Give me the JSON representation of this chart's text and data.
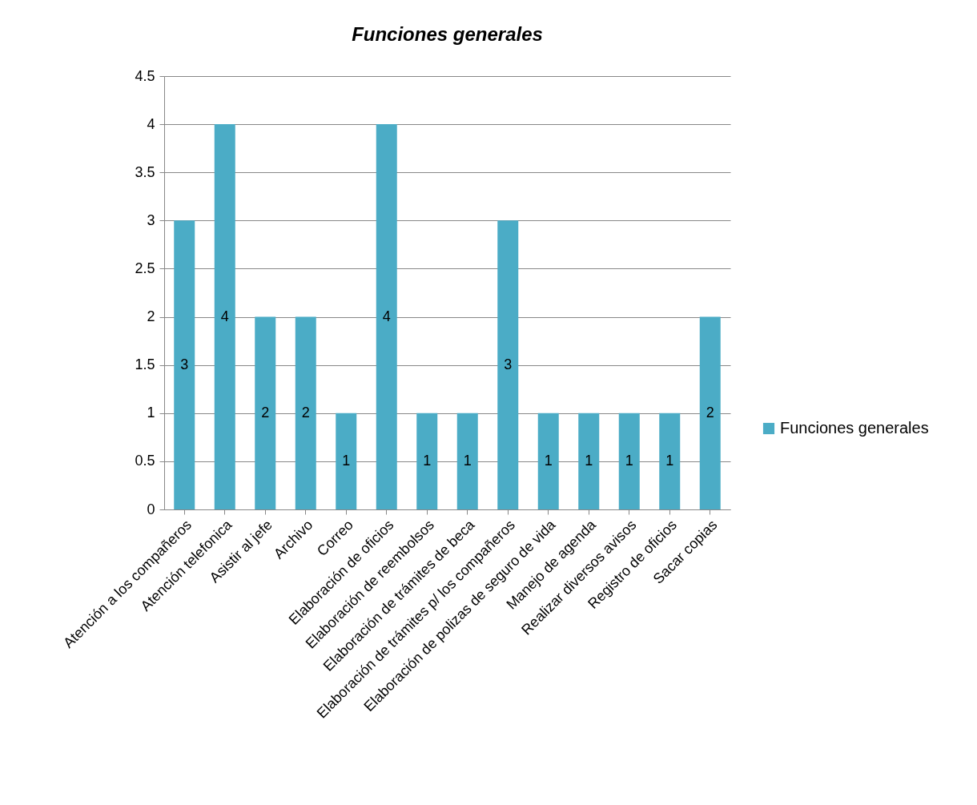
{
  "chart_data": {
    "type": "bar",
    "title": "Funciones generales",
    "categories": [
      "Atención a los compañeros",
      "Atención telefonica",
      "Asistir al jefe",
      "Archivo",
      "Correo",
      "Elaboración de oficios",
      "Elaboración de reembolsos",
      "Elaboración de trámites de beca",
      "Elaboración de trámites p/ los compañeros",
      "Elaboración de polizas de seguro de vida",
      "Manejo de agenda",
      "Realizar diversos avisos",
      "Registro de oficios",
      "Sacar copias"
    ],
    "series": [
      {
        "name": "Funciones generales",
        "color": "#4bacc6",
        "values": [
          3,
          4,
          2,
          2,
          1,
          4,
          1,
          1,
          3,
          1,
          1,
          1,
          1,
          2
        ]
      }
    ],
    "ylim": [
      0,
      4.5
    ],
    "yticks": [
      0,
      0.5,
      1,
      1.5,
      2,
      2.5,
      3,
      3.5,
      4,
      4.5
    ],
    "grid": "y",
    "legend": "right",
    "data_labels": true
  }
}
